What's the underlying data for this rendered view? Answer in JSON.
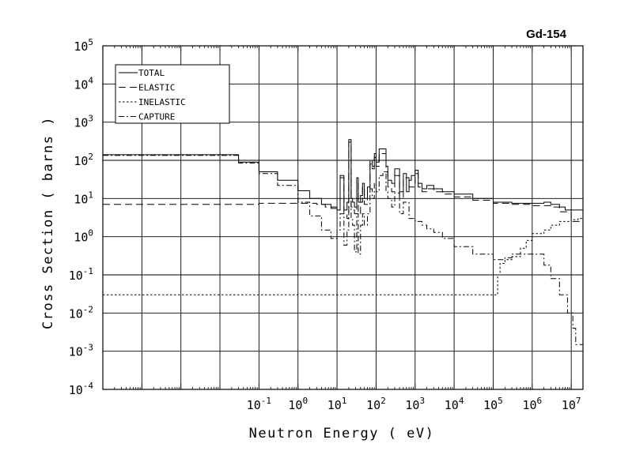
{
  "chart_data": {
    "type": "line",
    "title": "Gd-154",
    "xlabel": "Neutron Energy ( eV)",
    "ylabel": "Cross Section ( barns )",
    "xscale": "log",
    "yscale": "log",
    "xlim": [
      1e-05,
      20000000
    ],
    "ylim": [
      0.0001,
      100000
    ],
    "grid": true,
    "legend_position": "top-left",
    "x_ticks": [
      {
        "base": "10",
        "exp": "-1",
        "value": 0.1
      },
      {
        "base": "10",
        "exp": "0",
        "value": 1
      },
      {
        "base": "10",
        "exp": "1",
        "value": 10
      },
      {
        "base": "10",
        "exp": "2",
        "value": 100
      },
      {
        "base": "10",
        "exp": "3",
        "value": 1000
      },
      {
        "base": "10",
        "exp": "4",
        "value": 10000
      },
      {
        "base": "10",
        "exp": "5",
        "value": 100000
      },
      {
        "base": "10",
        "exp": "6",
        "value": 1000000
      },
      {
        "base": "10",
        "exp": "7",
        "value": 10000000
      }
    ],
    "y_ticks": [
      {
        "base": "10",
        "exp": "5",
        "value": 100000
      },
      {
        "base": "10",
        "exp": "4",
        "value": 10000
      },
      {
        "base": "10",
        "exp": "3",
        "value": 1000
      },
      {
        "base": "10",
        "exp": "2",
        "value": 100
      },
      {
        "base": "10",
        "exp": "1",
        "value": 10
      },
      {
        "base": "10",
        "exp": "0",
        "value": 1
      },
      {
        "base": "10",
        "exp": "-1",
        "value": 0.1
      },
      {
        "base": "10",
        "exp": "-2",
        "value": 0.01
      },
      {
        "base": "10",
        "exp": "-3",
        "value": 0.001
      },
      {
        "base": "10",
        "exp": "-4",
        "value": 0.0001
      }
    ],
    "series": [
      {
        "name": "TOTAL",
        "dash": "solid",
        "x": [
          0.01,
          0.03,
          0.1,
          0.3,
          1,
          2,
          4,
          7,
          10,
          12,
          15,
          18,
          20,
          23,
          25,
          28,
          32,
          35,
          40,
          45,
          50,
          60,
          70,
          80,
          90,
          100,
          120,
          150,
          180,
          200,
          250,
          300,
          400,
          500,
          600,
          700,
          800,
          1000,
          1200,
          1500,
          2000,
          3000,
          5000,
          10000,
          30000,
          100000,
          300000,
          1000000,
          2000000,
          3000000,
          5000000,
          7000000,
          10000000,
          20000000
        ],
        "y": [
          140,
          90,
          50,
          30,
          16,
          10,
          7,
          5.5,
          5,
          40,
          5,
          8,
          350,
          10,
          8,
          6,
          35,
          8,
          12,
          25,
          10,
          20,
          100,
          70,
          150,
          90,
          200,
          200,
          70,
          30,
          25,
          60,
          15,
          45,
          15,
          30,
          40,
          55,
          25,
          18,
          22,
          18,
          15,
          13,
          10,
          8,
          7.5,
          7.5,
          8,
          7,
          6,
          5,
          5,
          6
        ]
      },
      {
        "name": "ELASTIC",
        "dash": "long-dash",
        "x": [
          0.01,
          0.1,
          1,
          3,
          5,
          10,
          12,
          15,
          18,
          20,
          23,
          25,
          28,
          32,
          35,
          40,
          45,
          50,
          60,
          70,
          80,
          90,
          100,
          120,
          150,
          180,
          200,
          250,
          300,
          400,
          500,
          700,
          1000,
          1200,
          1500,
          2000,
          3000,
          5000,
          10000,
          30000,
          100000,
          300000,
          1000000,
          2000000,
          3000000,
          5000000,
          10000000,
          20000000
        ],
        "y": [
          7,
          7.5,
          7.5,
          7,
          6,
          5,
          35,
          4,
          3,
          300,
          6,
          5,
          4,
          30,
          4,
          8,
          20,
          7,
          15,
          80,
          60,
          120,
          70,
          150,
          150,
          50,
          20,
          15,
          40,
          10,
          35,
          20,
          45,
          20,
          15,
          18,
          15,
          13,
          11,
          9,
          7.5,
          7,
          6.5,
          6.5,
          6,
          4.5,
          2.5,
          3
        ]
      },
      {
        "name": "INELASTIC",
        "dash": "short-dash",
        "x": [
          110000,
          130000,
          150000,
          200000,
          300000,
          500000,
          700000,
          1000000,
          2000000,
          3000000,
          5000000,
          10000000,
          15000000,
          20000000
        ],
        "y": [
          0.03,
          0.1,
          0.2,
          0.25,
          0.3,
          0.5,
          0.8,
          1.2,
          1.5,
          2,
          2.5,
          2.8,
          3,
          3
        ]
      },
      {
        "name": "CAPTURE",
        "dash": "dash-dot",
        "x": [
          0.01,
          0.03,
          0.1,
          0.3,
          1,
          2,
          4,
          7,
          10,
          12,
          15,
          18,
          20,
          23,
          25,
          28,
          32,
          35,
          40,
          45,
          50,
          60,
          70,
          80,
          90,
          100,
          120,
          150,
          180,
          200,
          250,
          300,
          400,
          500,
          700,
          1000,
          1500,
          2000,
          3000,
          5000,
          10000,
          30000,
          100000,
          200000,
          300000,
          1000000,
          2000000,
          3000000,
          5000000,
          8000000,
          10000000,
          11000000,
          13000000,
          20000000
        ],
        "y": [
          135,
          85,
          45,
          22,
          8,
          3.5,
          1.5,
          0.9,
          1.5,
          4,
          0.6,
          1.5,
          45,
          3,
          2,
          0.4,
          4,
          0.35,
          2,
          4,
          2,
          4,
          18,
          10,
          25,
          15,
          40,
          50,
          15,
          10,
          6,
          14,
          4,
          8,
          3,
          2.5,
          2,
          1.6,
          1.3,
          0.9,
          0.55,
          0.35,
          0.25,
          0.28,
          0.35,
          0.35,
          0.18,
          0.08,
          0.03,
          0.01,
          0.01,
          0.004,
          0.0015,
          0.001
        ]
      }
    ]
  }
}
